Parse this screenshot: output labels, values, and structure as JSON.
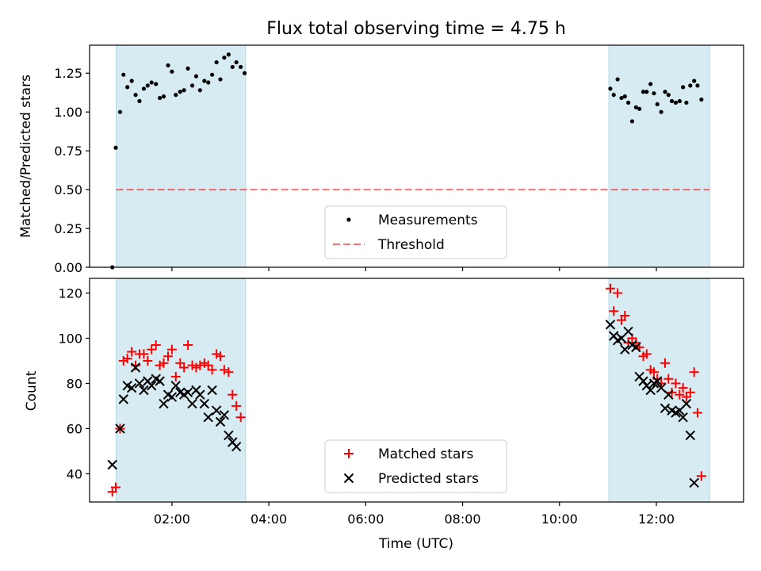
{
  "chart_data": [
    {
      "type": "scatter",
      "title": "Flux total observing time = 4.75 h",
      "xlabel": "",
      "ylabel": "Matched/Predicted stars",
      "xlim": [
        0.3,
        13.8
      ],
      "ylim": [
        0.0,
        1.43
      ],
      "yticks": [
        0.0,
        0.25,
        0.5,
        0.75,
        1.0,
        1.25
      ],
      "ytick_labels": [
        "0.00",
        "0.25",
        "0.50",
        "0.75",
        "1.00",
        "1.25"
      ],
      "shaded_intervals": [
        [
          0.85,
          3.52
        ],
        [
          11.02,
          13.1
        ]
      ],
      "shade_color": "#add8e6",
      "threshold": {
        "name": "Threshold",
        "value": 0.5,
        "color": "#ff0000"
      },
      "legend": {
        "position": "lower-center",
        "entries": [
          "Measurements",
          "Threshold"
        ]
      },
      "series": [
        {
          "name": "Measurements",
          "color": "#000000",
          "points": [
            [
              0.77,
              0.0
            ],
            [
              0.84,
              0.77
            ],
            [
              0.93,
              1.0
            ],
            [
              1.0,
              1.24
            ],
            [
              1.08,
              1.16
            ],
            [
              1.17,
              1.2
            ],
            [
              1.25,
              1.11
            ],
            [
              1.33,
              1.07
            ],
            [
              1.42,
              1.15
            ],
            [
              1.5,
              1.17
            ],
            [
              1.58,
              1.19
            ],
            [
              1.67,
              1.18
            ],
            [
              1.75,
              1.09
            ],
            [
              1.83,
              1.1
            ],
            [
              1.92,
              1.3
            ],
            [
              2.0,
              1.26
            ],
            [
              2.08,
              1.11
            ],
            [
              2.17,
              1.13
            ],
            [
              2.25,
              1.14
            ],
            [
              2.33,
              1.28
            ],
            [
              2.42,
              1.17
            ],
            [
              2.5,
              1.23
            ],
            [
              2.58,
              1.14
            ],
            [
              2.67,
              1.2
            ],
            [
              2.75,
              1.19
            ],
            [
              2.83,
              1.24
            ],
            [
              2.92,
              1.32
            ],
            [
              3.0,
              1.21
            ],
            [
              3.08,
              1.35
            ],
            [
              3.17,
              1.37
            ],
            [
              3.25,
              1.29
            ],
            [
              3.33,
              1.32
            ],
            [
              3.42,
              1.29
            ],
            [
              3.5,
              1.25
            ],
            [
              11.05,
              1.15
            ],
            [
              11.12,
              1.11
            ],
            [
              11.2,
              1.21
            ],
            [
              11.28,
              1.09
            ],
            [
              11.35,
              1.1
            ],
            [
              11.42,
              1.06
            ],
            [
              11.5,
              0.94
            ],
            [
              11.58,
              1.03
            ],
            [
              11.65,
              1.02
            ],
            [
              11.73,
              1.13
            ],
            [
              11.8,
              1.13
            ],
            [
              11.88,
              1.18
            ],
            [
              11.95,
              1.12
            ],
            [
              12.02,
              1.05
            ],
            [
              12.1,
              1.0
            ],
            [
              12.18,
              1.13
            ],
            [
              12.25,
              1.11
            ],
            [
              12.32,
              1.07
            ],
            [
              12.4,
              1.06
            ],
            [
              12.48,
              1.07
            ],
            [
              12.55,
              1.16
            ],
            [
              12.62,
              1.06
            ],
            [
              12.7,
              1.17
            ],
            [
              12.78,
              1.2
            ],
            [
              12.85,
              1.17
            ],
            [
              12.93,
              1.08
            ]
          ]
        }
      ]
    },
    {
      "type": "scatter",
      "title": "",
      "xlabel": "Time (UTC)",
      "ylabel": "Count",
      "xlim": [
        0.3,
        13.8
      ],
      "ylim": [
        27.5,
        126.5
      ],
      "yticks": [
        40,
        60,
        80,
        100,
        120
      ],
      "ytick_labels": [
        "40",
        "60",
        "80",
        "100",
        "120"
      ],
      "xticks": [
        2,
        4,
        6,
        8,
        10,
        12
      ],
      "xtick_labels": [
        "02:00",
        "04:00",
        "06:00",
        "08:00",
        "10:00",
        "12:00"
      ],
      "shaded_intervals": [
        [
          0.85,
          3.52
        ],
        [
          11.02,
          13.1
        ]
      ],
      "shade_color": "#add8e6",
      "legend": {
        "position": "lower-center",
        "entries": [
          "Matched stars",
          "Predicted stars"
        ]
      },
      "series": [
        {
          "name": "Matched stars",
          "marker": "plus",
          "color": "#ff0000",
          "points": [
            [
              0.77,
              32
            ],
            [
              0.84,
              34
            ],
            [
              0.93,
              60
            ],
            [
              1.0,
              90
            ],
            [
              1.08,
              91
            ],
            [
              1.17,
              94
            ],
            [
              1.25,
              88
            ],
            [
              1.33,
              93
            ],
            [
              1.42,
              93
            ],
            [
              1.5,
              90
            ],
            [
              1.58,
              95
            ],
            [
              1.67,
              97
            ],
            [
              1.75,
              88
            ],
            [
              1.83,
              89
            ],
            [
              1.92,
              92
            ],
            [
              2.0,
              95
            ],
            [
              2.08,
              83
            ],
            [
              2.17,
              89
            ],
            [
              2.25,
              87
            ],
            [
              2.33,
              97
            ],
            [
              2.42,
              88
            ],
            [
              2.5,
              87
            ],
            [
              2.58,
              88
            ],
            [
              2.67,
              89
            ],
            [
              2.75,
              88
            ],
            [
              2.83,
              86
            ],
            [
              2.92,
              93
            ],
            [
              3.0,
              92
            ],
            [
              3.08,
              86
            ],
            [
              3.17,
              85
            ],
            [
              3.25,
              75
            ],
            [
              3.33,
              70
            ],
            [
              3.42,
              65
            ],
            [
              11.05,
              122
            ],
            [
              11.12,
              112
            ],
            [
              11.2,
              120
            ],
            [
              11.28,
              108
            ],
            [
              11.35,
              110
            ],
            [
              11.42,
              98
            ],
            [
              11.5,
              100
            ],
            [
              11.58,
              98
            ],
            [
              11.65,
              96
            ],
            [
              11.73,
              92
            ],
            [
              11.8,
              93
            ],
            [
              11.88,
              86
            ],
            [
              11.95,
              85
            ],
            [
              12.02,
              82
            ],
            [
              12.1,
              80
            ],
            [
              12.18,
              89
            ],
            [
              12.25,
              82
            ],
            [
              12.32,
              76
            ],
            [
              12.4,
              80
            ],
            [
              12.48,
              75
            ],
            [
              12.55,
              78
            ],
            [
              12.62,
              74
            ],
            [
              12.7,
              76
            ],
            [
              12.78,
              85
            ],
            [
              12.85,
              67
            ],
            [
              12.93,
              39
            ]
          ]
        },
        {
          "name": "Predicted stars",
          "marker": "x",
          "color": "#000000",
          "points": [
            [
              0.77,
              44
            ],
            [
              0.93,
              60
            ],
            [
              1.0,
              73
            ],
            [
              1.08,
              79
            ],
            [
              1.17,
              78
            ],
            [
              1.25,
              87
            ],
            [
              1.33,
              80
            ],
            [
              1.42,
              77
            ],
            [
              1.5,
              81
            ],
            [
              1.58,
              79
            ],
            [
              1.67,
              82
            ],
            [
              1.75,
              81
            ],
            [
              1.83,
              71
            ],
            [
              1.92,
              75
            ],
            [
              2.0,
              74
            ],
            [
              2.08,
              79
            ],
            [
              2.17,
              76
            ],
            [
              2.25,
              75
            ],
            [
              2.33,
              76
            ],
            [
              2.42,
              71
            ],
            [
              2.5,
              77
            ],
            [
              2.58,
              75
            ],
            [
              2.67,
              71
            ],
            [
              2.75,
              65
            ],
            [
              2.83,
              77
            ],
            [
              2.92,
              68
            ],
            [
              3.0,
              63
            ],
            [
              3.08,
              66
            ],
            [
              3.17,
              57
            ],
            [
              3.25,
              54
            ],
            [
              3.33,
              52
            ],
            [
              11.05,
              106
            ],
            [
              11.12,
              101
            ],
            [
              11.2,
              99
            ],
            [
              11.28,
              100
            ],
            [
              11.35,
              95
            ],
            [
              11.42,
              103
            ],
            [
              11.5,
              97
            ],
            [
              11.58,
              96
            ],
            [
              11.65,
              83
            ],
            [
              11.73,
              81
            ],
            [
              11.8,
              79
            ],
            [
              11.88,
              77
            ],
            [
              11.95,
              80
            ],
            [
              12.02,
              81
            ],
            [
              12.1,
              78
            ],
            [
              12.18,
              69
            ],
            [
              12.25,
              75
            ],
            [
              12.32,
              68
            ],
            [
              12.4,
              67
            ],
            [
              12.48,
              68
            ],
            [
              12.55,
              65
            ],
            [
              12.62,
              71
            ],
            [
              12.7,
              57
            ],
            [
              12.78,
              36
            ]
          ]
        }
      ]
    }
  ]
}
